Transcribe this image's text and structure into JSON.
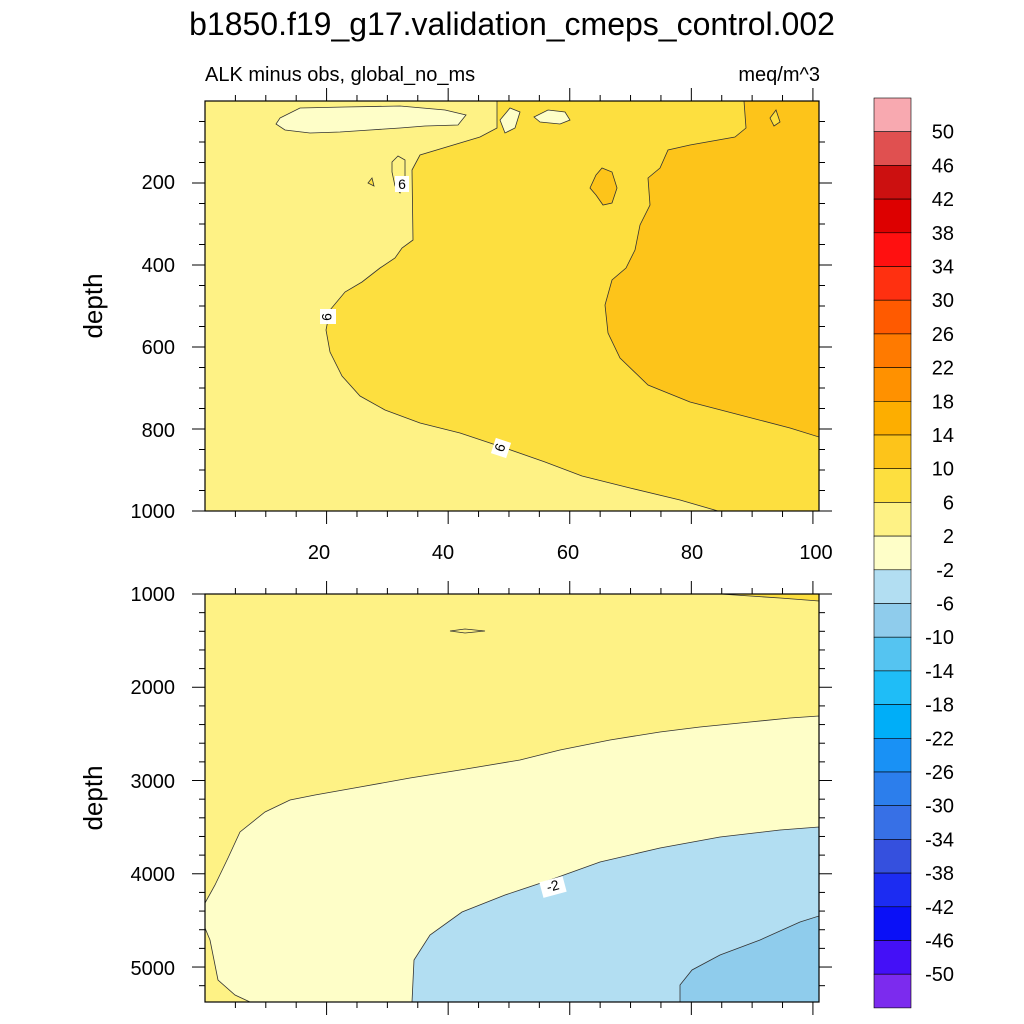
{
  "chart_data": {
    "type": "contour",
    "title": "b1850.f19_g17.validation_cmeps_control.002",
    "subtitle_left": "ALK minus obs, global_no_ms",
    "subtitle_right": "meq/m^3",
    "colors": {
      "c_50": "#F8A9B0",
      "c_46": "#E05050",
      "c_42": "#CC1010",
      "c_38": "#DD0000",
      "c_34": "#FF1010",
      "c_30": "#FF3010",
      "c_26": "#FF5A00",
      "c_22": "#FF7A00",
      "c_18": "#FF9100",
      "c_14": "#FDAE00",
      "c_10": "#FDC41A",
      "c_6": "#FDDF3F",
      "c_2": "#FEF285",
      "c_m2": "#FEFEC8",
      "c_m6": "#B2DEF2",
      "c_m10": "#8FCCEC",
      "c_m14": "#55C4F1",
      "c_m18": "#1FBDF7",
      "c_m22": "#00AEF8",
      "c_m26": "#1991F5",
      "c_m30": "#2C7EEC",
      "c_m34": "#3770E6",
      "c_m38": "#3550DE",
      "c_m42": "#1C2CF2",
      "c_m46": "#0A10F7",
      "c_m50": "#4410F7",
      "c_m54": "#7C2BEE"
    },
    "colorbar": {
      "labels": [
        "50",
        "46",
        "42",
        "38",
        "34",
        "30",
        "26",
        "22",
        "18",
        "14",
        "10",
        "6",
        "2",
        "-2",
        "-6",
        "-10",
        "-14",
        "-18",
        "-22",
        "-26",
        "-30",
        "-34",
        "-38",
        "-42",
        "-46",
        "-50"
      ]
    },
    "panels": [
      {
        "id": "upper",
        "xlabel": "",
        "ylabel": "depth",
        "xlim": [
          0,
          101
        ],
        "ylim": [
          0,
          1000
        ],
        "y_reversed": true,
        "xticks": [
          "20",
          "40",
          "60",
          "80",
          "100"
        ],
        "yticks": [
          "200",
          "400",
          "600",
          "800",
          "1000"
        ],
        "contour_labels": [
          "6",
          "6",
          "6"
        ]
      },
      {
        "id": "lower",
        "xlabel": "",
        "ylabel": "depth",
        "xlim": [
          0,
          101
        ],
        "ylim": [
          1000,
          5375
        ],
        "y_reversed": true,
        "yticks": [
          "1000",
          "2000",
          "3000",
          "4000",
          "5000"
        ],
        "contour_labels": [
          "-2"
        ]
      }
    ]
  }
}
